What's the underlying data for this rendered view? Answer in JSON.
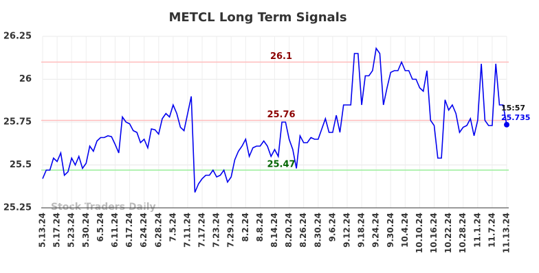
{
  "chart_data": {
    "type": "line",
    "title": "METCL Long Term Signals",
    "watermark": "Stock Traders Daily",
    "categories": [
      "5.13.24",
      null,
      null,
      null,
      "5.17.24",
      null,
      null,
      null,
      "5.23.24",
      null,
      null,
      null,
      "5.30.24",
      null,
      null,
      null,
      "6.5.24",
      null,
      null,
      null,
      "6.11.24",
      null,
      null,
      null,
      "6.17.24",
      null,
      null,
      null,
      "6.24.24",
      null,
      null,
      null,
      "6.28.24",
      null,
      null,
      null,
      "7.5.24",
      null,
      null,
      null,
      "7.11.24",
      null,
      null,
      null,
      "7.17.24",
      null,
      null,
      null,
      "7.23.24",
      null,
      null,
      null,
      "7.29.24",
      null,
      null,
      null,
      "8.2.24",
      null,
      null,
      null,
      "8.8.24",
      null,
      null,
      null,
      "8.14.24",
      null,
      null,
      null,
      "8.20.24",
      null,
      null,
      null,
      "8.26.24",
      null,
      null,
      null,
      "8.30.24",
      null,
      null,
      null,
      "9.6.24",
      null,
      null,
      null,
      "9.12.24",
      null,
      null,
      null,
      "9.18.24",
      null,
      null,
      null,
      "9.24.24",
      null,
      null,
      null,
      "9.30.24",
      null,
      null,
      null,
      "10.4.24",
      null,
      null,
      null,
      "10.10.24",
      null,
      null,
      null,
      "10.16.24",
      null,
      null,
      null,
      "10.22.24",
      null,
      null,
      null,
      "10.28.24",
      null,
      null,
      null,
      "11.1.24",
      null,
      null,
      null,
      "11.7.24",
      null,
      null,
      null,
      "11.13.24"
    ],
    "series": [
      {
        "name": "METCL",
        "color": "#0000ee",
        "values": [
          25.42,
          25.47,
          25.47,
          25.54,
          25.52,
          25.57,
          25.44,
          25.46,
          25.54,
          25.5,
          25.55,
          25.48,
          25.51,
          25.61,
          25.58,
          25.64,
          25.66,
          25.66,
          25.67,
          25.665,
          25.62,
          25.57,
          25.78,
          25.75,
          25.74,
          25.7,
          25.69,
          25.63,
          25.65,
          25.6,
          25.71,
          25.705,
          25.68,
          25.77,
          25.8,
          25.78,
          25.85,
          25.8,
          25.72,
          25.7,
          25.8,
          25.9,
          25.34,
          25.39,
          25.42,
          25.44,
          25.44,
          25.47,
          25.43,
          25.44,
          25.47,
          25.4,
          25.43,
          25.53,
          25.58,
          25.61,
          25.65,
          25.55,
          25.6,
          25.61,
          25.61,
          25.64,
          25.61,
          25.55,
          25.59,
          25.55,
          25.75,
          25.75,
          25.65,
          25.59,
          25.48,
          25.67,
          25.63,
          25.63,
          25.66,
          25.65,
          25.65,
          25.71,
          25.77,
          25.69,
          25.69,
          25.79,
          25.69,
          25.85,
          25.85,
          25.85,
          26.15,
          26.15,
          25.85,
          26.02,
          26.02,
          26.05,
          26.18,
          26.15,
          25.85,
          25.95,
          26.04,
          26.05,
          26.05,
          26.1,
          26.05,
          26.05,
          26,
          26,
          25.95,
          25.93,
          26.05,
          25.76,
          25.73,
          25.54,
          25.54,
          25.88,
          25.82,
          25.85,
          25.8,
          25.69,
          25.72,
          25.73,
          25.77,
          25.67,
          25.76,
          26.09,
          25.76,
          25.73,
          25.73,
          26.09,
          25.85,
          25.85,
          25.735
        ]
      }
    ],
    "last_time": "15:57",
    "hlines": [
      {
        "value": 26.1,
        "color": "#ffbbbb",
        "label_color": "#8b0000"
      },
      {
        "value": 25.76,
        "color": "#ffbbbb",
        "label_color": "#8b0000"
      },
      {
        "value": 25.47,
        "color": "#99ee99",
        "label_color": "#006400"
      }
    ],
    "ylim": [
      25.25,
      26.25
    ],
    "yticks": [
      25.25,
      25.5,
      25.75,
      26,
      26.25
    ],
    "grid": true
  }
}
